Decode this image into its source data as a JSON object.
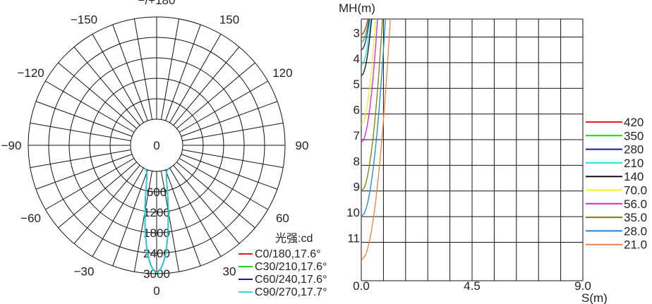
{
  "colors": {
    "C0": "#e02020",
    "C30": "#22cc22",
    "C60": "#1a1aaa",
    "C90": "#22dddd",
    "iso420": "#e02020",
    "iso350": "#22cc22",
    "iso280": "#1a1aaa",
    "iso210": "#22dddd",
    "iso140": "#111111",
    "iso70": "#f0f020",
    "iso56": "#dd22dd",
    "iso35": "#7f7f00",
    "iso28": "#2080dd",
    "iso21": "#f08040"
  },
  "chart_data": [
    {
      "type": "polar",
      "angle_labels": [
        {
          "angle": 180,
          "text": "−/+180"
        },
        {
          "angle": -150,
          "text": "−150"
        },
        {
          "angle": 150,
          "text": "150"
        },
        {
          "angle": -120,
          "text": "−120"
        },
        {
          "angle": 120,
          "text": "120"
        },
        {
          "angle": -90,
          "text": "−90"
        },
        {
          "angle": 90,
          "text": "90"
        },
        {
          "angle": -60,
          "text": "−60"
        },
        {
          "angle": 60,
          "text": "60"
        },
        {
          "angle": -30,
          "text": "−30"
        },
        {
          "angle": 30,
          "text": "30"
        },
        {
          "angle": 0,
          "text": "0"
        }
      ],
      "radial_ticks": [
        "0",
        "600",
        "1200",
        "1800",
        "2400",
        "3000"
      ],
      "radial_max": 3000,
      "unit_label": "光强:cd",
      "series": [
        {
          "name": "C0/180,17.6°",
          "color_key": "C0",
          "peak": 2950,
          "beam_half_angle": 8.8
        },
        {
          "name": "C30/210,17.6°",
          "color_key": "C30",
          "peak": 2950,
          "beam_half_angle": 8.8
        },
        {
          "name": "C60/240,17.6°",
          "color_key": "C60",
          "peak": 2950,
          "beam_half_angle": 8.8
        },
        {
          "name": "C90/270,17.7°",
          "color_key": "C90",
          "peak": 2960,
          "beam_half_angle": 8.85
        }
      ]
    },
    {
      "type": "isolux",
      "ylabel": "MH(m)",
      "xlabel": "S(m)",
      "xlim": [
        0,
        9.0
      ],
      "ylim": [
        2.3,
        12.5
      ],
      "x_ticks": [
        "0.0",
        "4.5",
        "9.0"
      ],
      "x_tick_values": [
        0,
        4.5,
        9.0
      ],
      "y_ticks": [
        3,
        4,
        5,
        6,
        7,
        8,
        9,
        10,
        11
      ],
      "legend": [
        "420",
        "350",
        "280",
        "210",
        "140",
        "70.0",
        "56.0",
        "35.0",
        "28.0",
        "21.0"
      ],
      "contours": [
        {
          "level": "420",
          "color_key": "iso420",
          "mh_max": 2.9,
          "spread": 0.27
        },
        {
          "level": "350",
          "color_key": "iso350",
          "mh_max": 3.2,
          "spread": 0.3
        },
        {
          "level": "280",
          "color_key": "iso280",
          "mh_max": 3.5,
          "spread": 0.33
        },
        {
          "level": "210",
          "color_key": "iso210",
          "mh_max": 4.1,
          "spread": 0.38
        },
        {
          "level": "140",
          "color_key": "iso140",
          "mh_max": 4.5,
          "spread": 0.42
        },
        {
          "level": "70.0",
          "color_key": "iso70",
          "mh_max": 6.4,
          "spread": 0.58
        },
        {
          "level": "56.0",
          "color_key": "iso56",
          "mh_max": 7.1,
          "spread": 0.66
        },
        {
          "level": "35.0",
          "color_key": "iso35",
          "mh_max": 9.0,
          "spread": 0.86
        },
        {
          "level": "28.0",
          "color_key": "iso28",
          "mh_max": 10.0,
          "spread": 0.98
        },
        {
          "level": "21.0",
          "color_key": "iso21",
          "mh_max": 11.7,
          "spread": 1.18
        }
      ]
    }
  ]
}
